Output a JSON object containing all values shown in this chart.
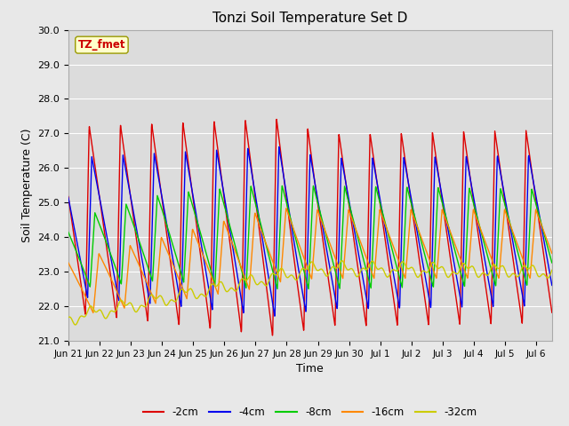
{
  "title": "Tonzi Soil Temperature Set D",
  "xlabel": "Time",
  "ylabel": "Soil Temperature (C)",
  "ylim": [
    21.0,
    30.0
  ],
  "yticks": [
    21.0,
    22.0,
    23.0,
    24.0,
    25.0,
    26.0,
    27.0,
    28.0,
    29.0,
    30.0
  ],
  "legend_label": "TZ_fmet",
  "series_labels": [
    "-2cm",
    "-4cm",
    "-8cm",
    "-16cm",
    "-32cm"
  ],
  "series_colors": [
    "#dd0000",
    "#0000ee",
    "#00cc00",
    "#ff8800",
    "#cccc00"
  ],
  "bg_color": "#e8e8e8",
  "plot_bg_color": "#dcdcdc",
  "grid_color": "#ffffff",
  "xtick_labels": [
    "Jun 21",
    "Jun 22",
    "Jun 23",
    "Jun 24",
    "Jun 25",
    "Jun 26",
    "Jun 27",
    "Jun 28",
    "Jun 29",
    "Jun 30",
    "Jul 1",
    "Jul 2",
    "Jul 3",
    "Jul 4",
    "Jul 5",
    "Jul 6"
  ],
  "xtick_positions": [
    0,
    1,
    2,
    3,
    4,
    5,
    6,
    7,
    8,
    9,
    10,
    11,
    12,
    13,
    14,
    15
  ],
  "xlim": [
    0,
    15.5
  ]
}
